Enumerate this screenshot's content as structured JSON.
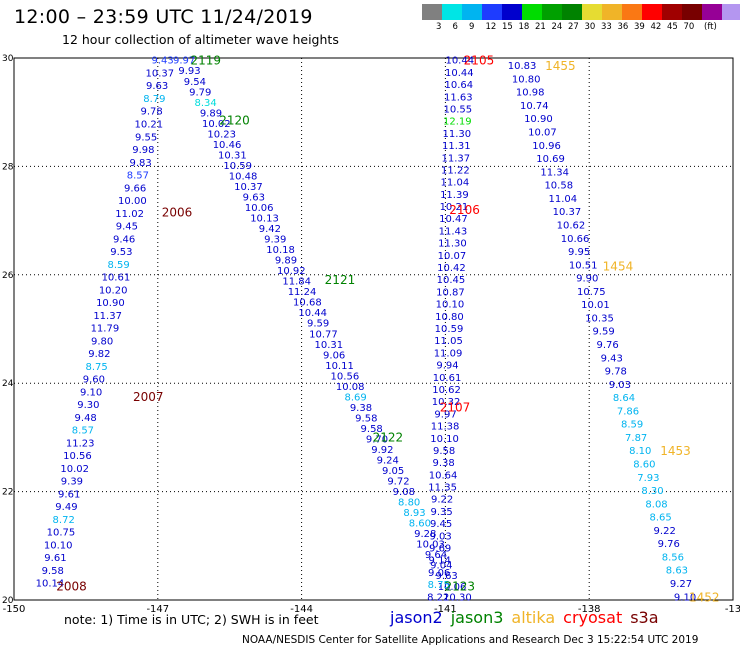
{
  "header": {
    "title": "12:00 – 23:59 UTC 11/24/2019",
    "subtitle": "12 hour collection of altimeter wave heights"
  },
  "colorbar": {
    "colors": [
      "#808080",
      "#00e5e5",
      "#00b4f0",
      "#1e3cff",
      "#0000cd",
      "#00dc00",
      "#00a000",
      "#008200",
      "#e6dc32",
      "#f0b428",
      "#fa7814",
      "#ff0000",
      "#a00000",
      "#780000",
      "#960096",
      "#b496f0",
      "#dcdcff",
      "#000000"
    ],
    "labels": [
      "3",
      "6",
      "9",
      "12",
      "15",
      "18",
      "21",
      "24",
      "27",
      "30",
      "33",
      "36",
      "39",
      "42",
      "45",
      "70"
    ],
    "unit": "(ft)"
  },
  "chart_data": {
    "type": "map",
    "lon_range": [
      -150,
      -135
    ],
    "lat_range": [
      20,
      30
    ],
    "x_tick_labels": [
      "-150",
      "-147",
      "-144",
      "-141",
      "-138",
      "-13"
    ],
    "y_tick_labels": [
      "20",
      "22",
      "24",
      "26",
      "28",
      "30"
    ],
    "grid": true,
    "pass_labels": [
      {
        "text": "2119",
        "lon": -146.0,
        "lat": 29.95,
        "color": "#008200"
      },
      {
        "text": "2120",
        "lon": -145.4,
        "lat": 28.85,
        "color": "#008200"
      },
      {
        "text": "2121",
        "lon": -143.2,
        "lat": 25.9,
        "color": "#008200"
      },
      {
        "text": "2122",
        "lon": -142.2,
        "lat": 23.0,
        "color": "#008200"
      },
      {
        "text": "2123",
        "lon": -140.7,
        "lat": 20.25,
        "color": "#008200"
      },
      {
        "text": "2006",
        "lon": -146.6,
        "lat": 27.15,
        "color": "#780000"
      },
      {
        "text": "2007",
        "lon": -147.2,
        "lat": 23.75,
        "color": "#780000"
      },
      {
        "text": "2008",
        "lon": -148.8,
        "lat": 20.25,
        "color": "#780000"
      },
      {
        "text": "2105",
        "lon": -140.3,
        "lat": 29.95,
        "color": "#ff0000"
      },
      {
        "text": "2106",
        "lon": -140.6,
        "lat": 27.2,
        "color": "#ff0000"
      },
      {
        "text": "2107",
        "lon": -140.8,
        "lat": 23.55,
        "color": "#ff0000"
      },
      {
        "text": "1455",
        "lon": -138.6,
        "lat": 29.85,
        "color": "#f0b428"
      },
      {
        "text": "1454",
        "lon": -137.4,
        "lat": 26.15,
        "color": "#f0b428"
      },
      {
        "text": "1453",
        "lon": -136.2,
        "lat": 22.75,
        "color": "#f0b428"
      },
      {
        "text": "1452",
        "lon": -135.6,
        "lat": 20.05,
        "color": "#f0b428"
      }
    ],
    "tracks": [
      {
        "name": "track-a",
        "start": [
          -146.9,
          29.95
        ],
        "end": [
          -149.25,
          20.3
        ],
        "values": [
          "9.43",
          "10.37",
          "9.63",
          "8.79",
          "9.78",
          "10.21",
          "9.55",
          "9.98",
          "9.83",
          "8.57",
          "9.66",
          "10.00",
          "11.02",
          "9.45",
          "9.46",
          "9.53",
          "8.59",
          "10.61",
          "10.20",
          "10.90",
          "11.37",
          "11.79",
          "9.80",
          "9.82",
          "8.75",
          "9.60",
          "9.10",
          "9.30",
          "9.48",
          "8.57",
          "11.23",
          "10.56",
          "10.02",
          "9.39",
          "9.61",
          "9.49",
          "8.72",
          "10.75",
          "10.10",
          "9.61",
          "9.58",
          "10.14"
        ],
        "colors": [
          "#1e3cff",
          "#0000cd",
          "#0000cd",
          "#00b4f0",
          "#0000cd",
          "#0000cd",
          "#0000cd",
          "#0000cd",
          "#0000cd",
          "#1e3cff",
          "#0000cd",
          "#0000cd",
          "#0000cd",
          "#0000cd",
          "#0000cd",
          "#0000cd",
          "#00b4f0",
          "#0000cd",
          "#0000cd",
          "#0000cd",
          "#0000cd",
          "#0000cd",
          "#0000cd",
          "#0000cd",
          "#00b4f0",
          "#0000cd",
          "#0000cd",
          "#0000cd",
          "#0000cd",
          "#00b4f0",
          "#0000cd",
          "#0000cd",
          "#0000cd",
          "#0000cd",
          "#0000cd",
          "#0000cd",
          "#00b4f0",
          "#0000cd",
          "#0000cd",
          "#0000cd",
          "#0000cd",
          "#0000cd"
        ]
      },
      {
        "name": "track-b",
        "start": [
          -146.45,
          29.95
        ],
        "end": [
          -140.75,
          20.05
        ],
        "values": [
          "9.97",
          "9.93",
          "9.54",
          "9.79",
          "8.34",
          "9.89",
          "10.02",
          "10.23",
          "10.46",
          "10.31",
          "10.59",
          "10.48",
          "10.37",
          "9.63",
          "10.06",
          "10.13",
          "9.42",
          "9.39",
          "10.18",
          "9.89",
          "10.92",
          "11.84",
          "11.24",
          "10.68",
          "10.44",
          "9.59",
          "10.77",
          "10.31",
          "9.06",
          "10.11",
          "10.56",
          "10.08",
          "8.69",
          "9.38",
          "9.58",
          "9.58",
          "9.70",
          "9.92",
          "9.24",
          "9.05",
          "9.72",
          "9.08",
          "8.80",
          "8.93",
          "8.60",
          "9.28",
          "10.03",
          "9.64",
          "9.04",
          "9.63",
          "10.06",
          "10.30"
        ],
        "colors": [
          "#1e3cff",
          "#0000cd",
          "#0000cd",
          "#0000cd",
          "#00dcdc",
          "#0000cd",
          "#0000cd",
          "#0000cd",
          "#0000cd",
          "#0000cd",
          "#0000cd",
          "#0000cd",
          "#0000cd",
          "#0000cd",
          "#0000cd",
          "#0000cd",
          "#0000cd",
          "#0000cd",
          "#0000cd",
          "#0000cd",
          "#0000cd",
          "#0000cd",
          "#0000cd",
          "#0000cd",
          "#0000cd",
          "#0000cd",
          "#0000cd",
          "#0000cd",
          "#0000cd",
          "#0000cd",
          "#0000cd",
          "#0000cd",
          "#00b4f0",
          "#0000cd",
          "#0000cd",
          "#0000cd",
          "#0000cd",
          "#0000cd",
          "#0000cd",
          "#0000cd",
          "#0000cd",
          "#0000cd",
          "#00b4f0",
          "#00b4f0",
          "#00b4f0",
          "#0000cd",
          "#0000cd",
          "#0000cd",
          "#0000cd",
          "#0000cd",
          "#0000cd",
          "#0000cd"
        ]
      },
      {
        "name": "track-c",
        "start": [
          -140.7,
          29.95
        ],
        "end": [
          -141.15,
          20.05
        ],
        "values": [
          "10.44",
          "10.44",
          "10.64",
          "11.63",
          "10.55",
          "12.19",
          "11.30",
          "11.31",
          "11.37",
          "11.22",
          "11.04",
          "11.39",
          "10.21",
          "10.47",
          "11.43",
          "11.30",
          "10.07",
          "10.42",
          "10.45",
          "10.87",
          "10.10",
          "10.80",
          "10.59",
          "11.05",
          "11.09",
          "9.94",
          "10.61",
          "10.62",
          "10.32",
          "9.97",
          "11.38",
          "10.10",
          "9.58",
          "9.38",
          "10.64",
          "11.35",
          "9.22",
          "9.35",
          "9.45",
          "9.03",
          "9.69",
          "9.14",
          "9.06",
          "8.75",
          "8.22"
        ],
        "colors": [
          "#0000cd",
          "#0000cd",
          "#0000cd",
          "#0000cd",
          "#0000cd",
          "#00dc00",
          "#0000cd",
          "#0000cd",
          "#0000cd",
          "#0000cd",
          "#0000cd",
          "#0000cd",
          "#0000cd",
          "#0000cd",
          "#0000cd",
          "#0000cd",
          "#0000cd",
          "#0000cd",
          "#0000cd",
          "#0000cd",
          "#0000cd",
          "#0000cd",
          "#0000cd",
          "#0000cd",
          "#0000cd",
          "#0000cd",
          "#0000cd",
          "#0000cd",
          "#0000cd",
          "#0000cd",
          "#0000cd",
          "#0000cd",
          "#0000cd",
          "#0000cd",
          "#0000cd",
          "#0000cd",
          "#0000cd",
          "#0000cd",
          "#0000cd",
          "#0000cd",
          "#0000cd",
          "#0000cd",
          "#0000cd",
          "#00b4f0",
          "#0000cd"
        ]
      },
      {
        "name": "track-d",
        "start": [
          -139.4,
          29.85
        ],
        "end": [
          -136.0,
          20.05
        ],
        "values": [
          "10.83",
          "10.80",
          "10.98",
          "10.74",
          "10.90",
          "10.07",
          "10.96",
          "10.69",
          "11.34",
          "10.58",
          "11.04",
          "10.37",
          "10.62",
          "10.66",
          "9.95",
          "10.51",
          "9.90",
          "10.75",
          "10.01",
          "10.35",
          "9.59",
          "9.76",
          "9.43",
          "9.78",
          "9.03",
          "8.64",
          "7.86",
          "8.59",
          "7.87",
          "8.10",
          "8.60",
          "7.93",
          "8.30",
          "8.08",
          "8.65",
          "9.22",
          "9.76",
          "8.56",
          "8.63",
          "9.27",
          "9.10"
        ],
        "colors": [
          "#0000cd",
          "#0000cd",
          "#0000cd",
          "#0000cd",
          "#0000cd",
          "#0000cd",
          "#0000cd",
          "#0000cd",
          "#0000cd",
          "#0000cd",
          "#0000cd",
          "#0000cd",
          "#0000cd",
          "#0000cd",
          "#0000cd",
          "#0000cd",
          "#0000cd",
          "#0000cd",
          "#0000cd",
          "#0000cd",
          "#0000cd",
          "#0000cd",
          "#0000cd",
          "#0000cd",
          "#0000cd",
          "#00b4f0",
          "#00b4f0",
          "#00b4f0",
          "#00b4f0",
          "#00b4f0",
          "#00b4f0",
          "#00b4f0",
          "#00b4f0",
          "#00b4f0",
          "#00b4f0",
          "#0000cd",
          "#0000cd",
          "#00b4f0",
          "#00b4f0",
          "#0000cd",
          "#0000cd"
        ]
      }
    ]
  },
  "note": "note:  1) Time is in UTC;  2) SWH is in feet",
  "satellites": [
    {
      "name": "jason2",
      "color": "#0000cd"
    },
    {
      "name": "jason3",
      "color": "#008200"
    },
    {
      "name": "altika",
      "color": "#f0b428"
    },
    {
      "name": "cryosat",
      "color": "#ff0000"
    },
    {
      "name": "s3a",
      "color": "#780000"
    }
  ],
  "footer": "NOAA/NESDIS Center for Satellite Applications and Research     Dec  3 15:22:54 UTC 2019"
}
